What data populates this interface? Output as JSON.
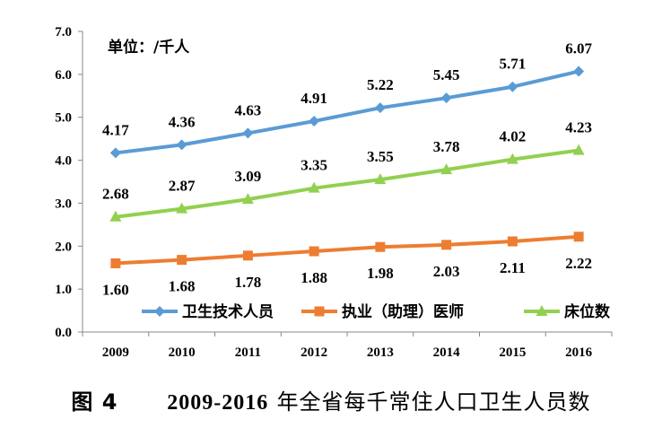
{
  "chart_data": {
    "type": "line",
    "unit_label": "单位：/千人",
    "categories": [
      "2009",
      "2010",
      "2011",
      "2012",
      "2013",
      "2014",
      "2015",
      "2016"
    ],
    "ylim": [
      0,
      7
    ],
    "yticks": [
      "0.0",
      "1.0",
      "2.0",
      "3.0",
      "4.0",
      "5.0",
      "6.0",
      "7.0"
    ],
    "grid": false,
    "legend_position": "bottom-right",
    "series": [
      {
        "name": "卫生技术人员",
        "color": "#5b9bd5",
        "marker": "diamond",
        "values": [
          4.17,
          4.36,
          4.63,
          4.91,
          5.22,
          5.45,
          5.71,
          6.07
        ],
        "labels": [
          "4.17",
          "4.36",
          "4.63",
          "4.91",
          "5.22",
          "5.45",
          "5.71",
          "6.07"
        ]
      },
      {
        "name": "执业（助理）医师",
        "color": "#ed7d31",
        "marker": "square",
        "values": [
          1.6,
          1.68,
          1.78,
          1.88,
          1.98,
          2.03,
          2.11,
          2.22
        ],
        "labels": [
          "1.60",
          "1.68",
          "1.78",
          "1.88",
          "1.98",
          "2.03",
          "2.11",
          "2.22"
        ]
      },
      {
        "name": "床位数",
        "color": "#92d050",
        "marker": "triangle",
        "values": [
          2.68,
          2.87,
          3.09,
          3.35,
          3.55,
          3.78,
          4.02,
          4.23
        ],
        "labels": [
          "2.68",
          "2.87",
          "3.09",
          "3.35",
          "3.55",
          "3.78",
          "4.02",
          "4.23"
        ]
      }
    ]
  },
  "caption": {
    "figure": "图 4",
    "years": "2009-2016",
    "text": "年全省每千常住人口卫生人员数"
  }
}
